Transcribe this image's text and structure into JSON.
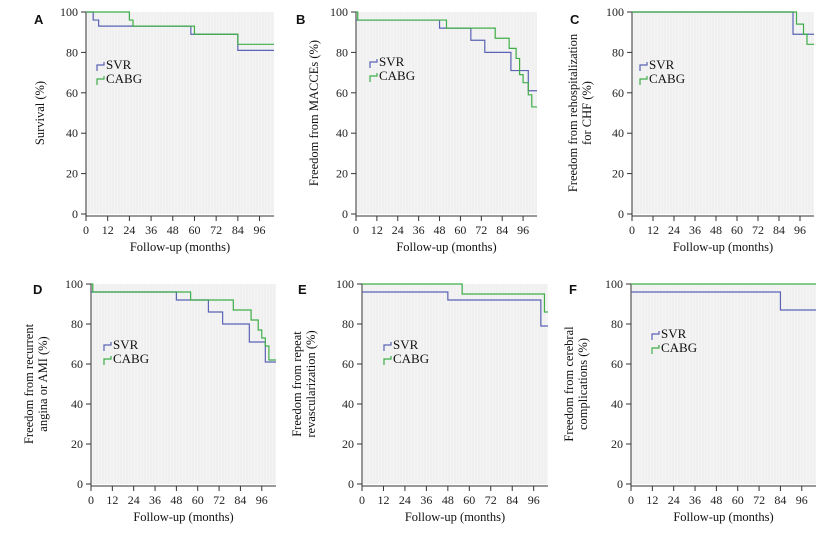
{
  "colors": {
    "svr": "#5a63b5",
    "cabg": "#3fae49",
    "plot_bg": "#f4f4f4",
    "grid": "#e6e6e6",
    "axis": "#333333"
  },
  "chart_data": [
    {
      "type": "line",
      "panel": "A",
      "xlabel": "Follow-up (months)",
      "ylabel": [
        "Survival (%)"
      ],
      "xlim": [
        0,
        104
      ],
      "ylim": [
        0,
        100
      ],
      "xticks": [
        0,
        12,
        24,
        36,
        48,
        60,
        72,
        84,
        96
      ],
      "yticks": [
        0,
        20,
        40,
        60,
        80,
        100
      ],
      "legend": [
        "SVR",
        "CABG"
      ],
      "series": [
        {
          "name": "SVR",
          "x": [
            0,
            4,
            7,
            58,
            84,
            104
          ],
          "y": [
            100,
            96,
            93,
            89,
            81,
            81
          ]
        },
        {
          "name": "CABG",
          "x": [
            0,
            24,
            26,
            60,
            84,
            104
          ],
          "y": [
            100,
            96,
            93,
            89,
            84,
            84
          ]
        }
      ]
    },
    {
      "type": "line",
      "panel": "B",
      "xlabel": "Follow-up (months)",
      "ylabel": [
        "Freedom from MACCEs (%)"
      ],
      "xlim": [
        0,
        104
      ],
      "ylim": [
        0,
        100
      ],
      "xticks": [
        0,
        12,
        24,
        36,
        48,
        60,
        72,
        84,
        96
      ],
      "yticks": [
        0,
        20,
        40,
        60,
        80,
        100
      ],
      "legend": [
        "SVR",
        "CABG"
      ],
      "series": [
        {
          "name": "SVR",
          "x": [
            0,
            48,
            66,
            74,
            89,
            96,
            99,
            104
          ],
          "y": [
            96,
            92,
            86,
            80,
            71,
            71,
            61,
            61
          ]
        },
        {
          "name": "CABG",
          "x": [
            0,
            1,
            52,
            80,
            88,
            92,
            94,
            96,
            99,
            101,
            104
          ],
          "y": [
            100,
            96,
            92,
            87,
            82,
            77,
            69,
            65,
            59,
            53,
            53
          ]
        }
      ]
    },
    {
      "type": "line",
      "panel": "C",
      "xlabel": "Follow-up (months)",
      "ylabel": [
        "Freedom from rehospitalization",
        "for CHF (%)"
      ],
      "xlim": [
        0,
        104
      ],
      "ylim": [
        0,
        100
      ],
      "xticks": [
        0,
        12,
        24,
        36,
        48,
        60,
        72,
        84,
        96
      ],
      "yticks": [
        0,
        20,
        40,
        60,
        80,
        100
      ],
      "legend": [
        "SVR",
        "CABG"
      ],
      "series": [
        {
          "name": "SVR",
          "x": [
            0,
            92,
            104
          ],
          "y": [
            100,
            89,
            89
          ]
        },
        {
          "name": "CABG",
          "x": [
            0,
            94,
            98,
            100,
            104
          ],
          "y": [
            100,
            94,
            89,
            84,
            84
          ]
        }
      ]
    },
    {
      "type": "line",
      "panel": "D",
      "xlabel": "Follow-up (months)",
      "ylabel": [
        "Freedom from recurrent",
        "angina or AMI (%)"
      ],
      "xlim": [
        0,
        104
      ],
      "ylim": [
        0,
        100
      ],
      "xticks": [
        0,
        12,
        24,
        36,
        48,
        60,
        72,
        84,
        96
      ],
      "yticks": [
        0,
        20,
        40,
        60,
        80,
        100
      ],
      "legend": [
        "SVR",
        "CABG"
      ],
      "series": [
        {
          "name": "SVR",
          "x": [
            0,
            48,
            66,
            74,
            89,
            98,
            104
          ],
          "y": [
            96,
            92,
            86,
            80,
            71,
            61,
            61
          ]
        },
        {
          "name": "CABG",
          "x": [
            0,
            1,
            56,
            80,
            90,
            94,
            96,
            98,
            100,
            104
          ],
          "y": [
            100,
            96,
            92,
            87,
            82,
            77,
            73,
            69,
            62,
            62
          ]
        }
      ]
    },
    {
      "type": "line",
      "panel": "E",
      "xlabel": "Follow-up (months)",
      "ylabel": [
        "Freedom from repeat",
        "revascularization (%)"
      ],
      "xlim": [
        0,
        104
      ],
      "ylim": [
        0,
        100
      ],
      "xticks": [
        0,
        12,
        24,
        36,
        48,
        60,
        72,
        84,
        96
      ],
      "yticks": [
        0,
        20,
        40,
        60,
        80,
        100
      ],
      "legend": [
        "SVR",
        "CABG"
      ],
      "series": [
        {
          "name": "SVR",
          "x": [
            0,
            48,
            100,
            104
          ],
          "y": [
            96,
            92,
            79,
            79
          ]
        },
        {
          "name": "CABG",
          "x": [
            0,
            56,
            102,
            104
          ],
          "y": [
            100,
            95,
            86,
            86
          ]
        }
      ]
    },
    {
      "type": "line",
      "panel": "F",
      "xlabel": "Follow-up (months)",
      "ylabel": [
        "Freedom from cerebral",
        "complications (%)"
      ],
      "xlim": [
        0,
        104
      ],
      "ylim": [
        0,
        100
      ],
      "xticks": [
        0,
        12,
        24,
        36,
        48,
        60,
        72,
        84,
        96
      ],
      "yticks": [
        0,
        20,
        40,
        60,
        80,
        100
      ],
      "legend": [
        "SVR",
        "CABG"
      ],
      "series": [
        {
          "name": "SVR",
          "x": [
            0,
            84,
            104
          ],
          "y": [
            96,
            87,
            87
          ]
        },
        {
          "name": "CABG",
          "x": [
            0,
            104
          ],
          "y": [
            100,
            100
          ]
        }
      ]
    }
  ]
}
